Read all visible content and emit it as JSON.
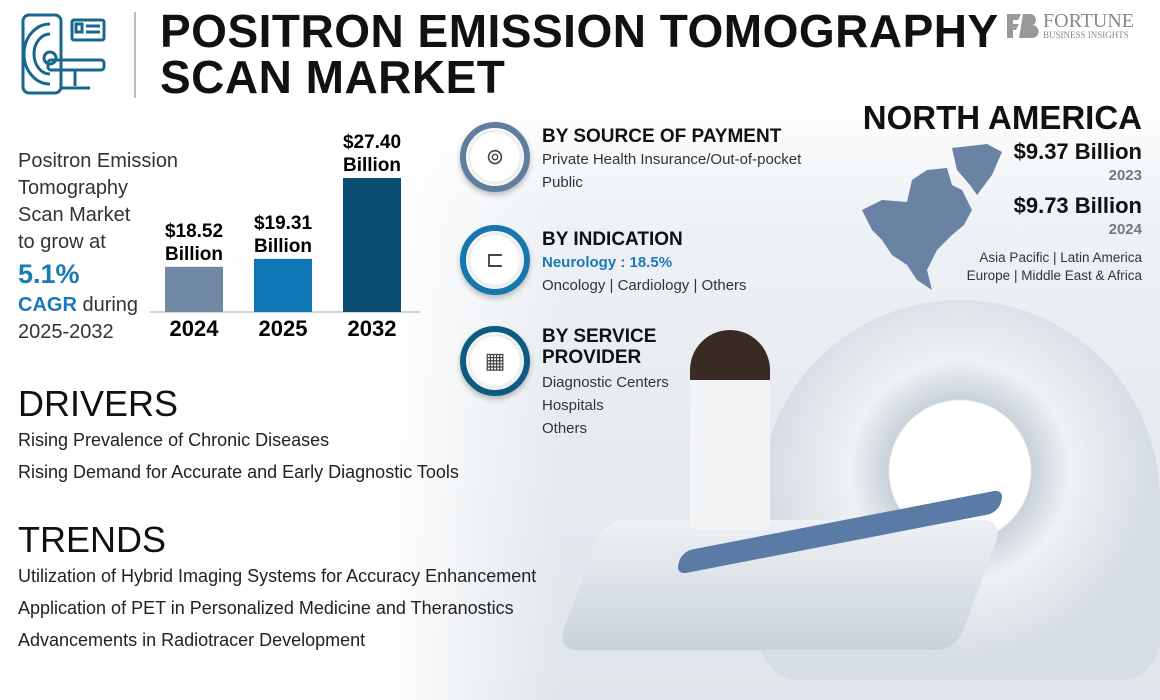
{
  "header": {
    "title_line1": "POSITRON EMISSION TOMOGRAPHY",
    "title_line2": "SCAN MARKET",
    "brand_name": "FORTUNE",
    "brand_sub": "BUSINESS INSIGHTS"
  },
  "intro": {
    "line1": "Positron Emission",
    "line2": "Tomography",
    "line3": "Scan Market",
    "line4": "to grow at",
    "cagr_value": "5.1%",
    "cagr_label": "CAGR",
    "cagr_suffix": " during",
    "period": "2025-2032"
  },
  "chart_data": {
    "type": "bar",
    "categories": [
      "2024",
      "2025",
      "2032"
    ],
    "values": [
      18.52,
      19.31,
      27.4
    ],
    "data_labels": [
      [
        "$18.52",
        "Billion"
      ],
      [
        "$19.31",
        "Billion"
      ],
      [
        "$27.40",
        "Billion"
      ]
    ],
    "colors": [
      "#7289a6",
      "#0e76b4",
      "#0a4f72"
    ],
    "ylim": [
      14,
      28
    ]
  },
  "segments": [
    {
      "title": "BY SOURCE OF PAYMENT",
      "items": [
        "Private Health Insurance/Out-of-pocket",
        "Public"
      ],
      "icon": "pet-scanner-icon"
    },
    {
      "title": "BY INDICATION",
      "highlight": "Neurology : 18.5%",
      "items": [
        "Oncology  |  Cardiology  |  Others"
      ],
      "icon": "scan-bed-icon"
    },
    {
      "title_line1": "BY SERVICE",
      "title_line2": "PROVIDER",
      "items": [
        "Diagnostic Centers",
        "Hospitals",
        "Others"
      ],
      "icon": "hospital-icon"
    }
  ],
  "region": {
    "name": "NORTH AMERICA",
    "value1": "$9.37 Billion",
    "year1": "2023",
    "value2": "$9.73 Billion",
    "year2": "2024",
    "others1": "Asia Pacific  |  Latin America",
    "others2": "Europe  |  Middle East & Africa",
    "map_color": "#6a82a3"
  },
  "drivers": {
    "heading": "DRIVERS",
    "items": [
      "Rising Prevalence of Chronic Diseases",
      "Rising Demand for Accurate and Early Diagnostic Tools"
    ]
  },
  "trends": {
    "heading": "TRENDS",
    "items": [
      "Utilization of Hybrid Imaging Systems for Accuracy Enhancement",
      "Application of PET in Personalized Medicine and Theranostics",
      "Advancements in Radiotracer Development"
    ]
  }
}
